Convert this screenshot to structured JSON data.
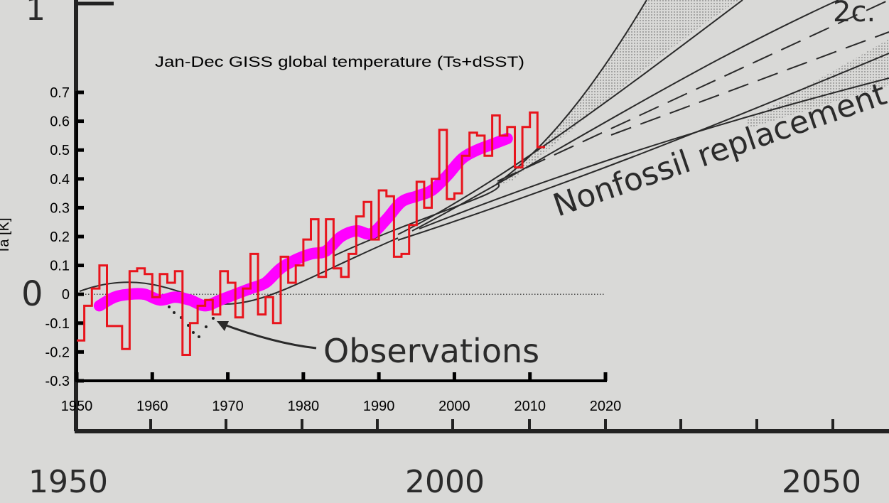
{
  "background_figure": {
    "year_labels": [
      "1950",
      "2000",
      "2050"
    ],
    "y_labels": [
      "1",
      "0"
    ],
    "annotations": {
      "observations": "Observations",
      "nonfossil": "Nonfossil replacement",
      "scenario": "2c."
    }
  },
  "chart_data": {
    "type": "line",
    "title": "Jan-Dec  GISS global temperature (Ts+dSST)",
    "xlabel": "",
    "ylabel": "Ta [K]",
    "xlim": [
      1950,
      2020
    ],
    "ylim": [
      -0.3,
      0.7
    ],
    "x_ticks": [
      "1950",
      "1960",
      "1970",
      "1980",
      "1990",
      "2000",
      "2010",
      "2020"
    ],
    "y_ticks": [
      "0.7",
      "0.6",
      "0.5",
      "0.4",
      "0.3",
      "0.2",
      "0.1",
      "0",
      "-0.1",
      "-0.2",
      "-0.3"
    ],
    "series": [
      {
        "color": "#e8141c",
        "style": "step",
        "x": [
          1950,
          1951,
          1952,
          1953,
          1954,
          1955,
          1956,
          1957,
          1958,
          1959,
          1960,
          1961,
          1962,
          1963,
          1964,
          1965,
          1966,
          1967,
          1968,
          1969,
          1970,
          1971,
          1972,
          1973,
          1974,
          1975,
          1976,
          1977,
          1978,
          1979,
          1980,
          1981,
          1982,
          1983,
          1984,
          1985,
          1986,
          1987,
          1988,
          1989,
          1990,
          1991,
          1992,
          1993,
          1994,
          1995,
          1996,
          1997,
          1998,
          1999,
          2000,
          2001,
          2002,
          2003,
          2004,
          2005,
          2006,
          2007,
          2008,
          2009,
          2010,
          2011
        ],
        "y": [
          -0.16,
          -0.04,
          0.02,
          0.1,
          -0.11,
          -0.11,
          -0.19,
          0.08,
          0.09,
          0.07,
          -0.01,
          0.07,
          0.04,
          0.08,
          -0.21,
          -0.1,
          -0.04,
          -0.02,
          -0.07,
          0.08,
          0.04,
          -0.08,
          0.02,
          0.14,
          -0.07,
          -0.01,
          -0.1,
          0.13,
          0.04,
          0.1,
          0.19,
          0.26,
          0.06,
          0.26,
          0.09,
          0.06,
          0.14,
          0.27,
          0.32,
          0.19,
          0.36,
          0.34,
          0.13,
          0.14,
          0.24,
          0.39,
          0.3,
          0.4,
          0.57,
          0.33,
          0.35,
          0.48,
          0.56,
          0.55,
          0.48,
          0.62,
          0.55,
          0.58,
          0.44,
          0.58,
          0.63,
          0.51
        ]
      },
      {
        "color": "#ff00ff",
        "style": "smooth",
        "x": [
          1953,
          1955,
          1957,
          1959,
          1961,
          1963,
          1965,
          1967,
          1969,
          1971,
          1973,
          1975,
          1977,
          1979,
          1981,
          1983,
          1985,
          1987,
          1989,
          1991,
          1993,
          1995,
          1997,
          1999,
          2001,
          2003,
          2005,
          2007
        ],
        "y": [
          -0.04,
          -0.01,
          0.0,
          0.0,
          -0.02,
          -0.01,
          -0.02,
          -0.04,
          -0.02,
          0.0,
          0.02,
          0.04,
          0.09,
          0.12,
          0.14,
          0.15,
          0.2,
          0.22,
          0.21,
          0.26,
          0.32,
          0.34,
          0.36,
          0.41,
          0.47,
          0.5,
          0.52,
          0.54
        ]
      }
    ]
  }
}
